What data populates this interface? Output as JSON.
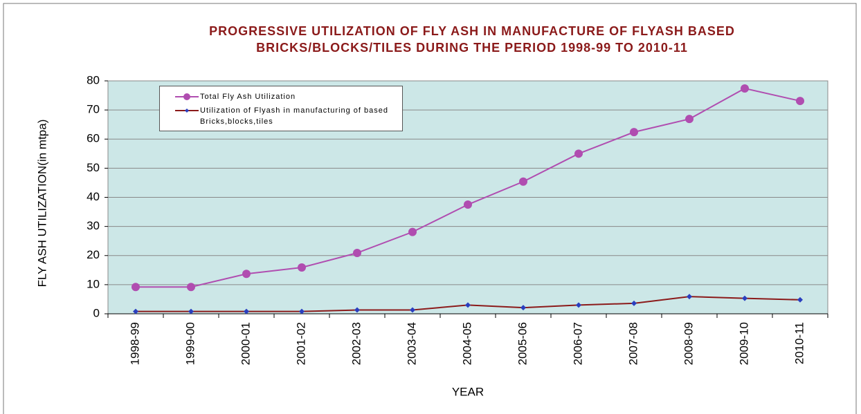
{
  "chart_data": {
    "type": "line",
    "title": [
      "PROGRESSIVE UTILIZATION OF FLY ASH IN MANUFACTURE OF FLYASH BASED",
      "BRICKS/BLOCKS/TILES DURING THE PERIOD 1998-99 TO 2010-11"
    ],
    "x_label": "YEAR",
    "y_label": "FLY ASH UTILIZATION(in mtpa)",
    "categories": [
      "1998-99",
      "1999-00",
      "2000-01",
      "2001-02",
      "2002-03",
      "2003-04",
      "2004-05",
      "2005-06",
      "2006-07",
      "2007-08",
      "2008-09",
      "2009-10",
      "2010-11"
    ],
    "series": [
      {
        "name": "Total Fly Ash Utilization",
        "color": "#b04db0",
        "marker_color": "#b04db0",
        "values": [
          9.2,
          9.2,
          13.7,
          15.9,
          20.9,
          28.1,
          37.5,
          45.4,
          55.0,
          62.4,
          66.9,
          77.4,
          73.1
        ]
      },
      {
        "name": "Utilization of Flyash in manufacturing of based Bricks,blocks,tiles",
        "color": "#8b1a1a",
        "marker_color": "#2a3fbf",
        "values": [
          0.8,
          0.8,
          0.8,
          0.8,
          1.3,
          1.3,
          3.0,
          2.1,
          3.0,
          3.6,
          5.9,
          5.3,
          4.8
        ]
      }
    ],
    "ylim": [
      0,
      80
    ],
    "yticks": [
      0,
      10,
      20,
      30,
      40,
      50,
      60,
      70,
      80
    ],
    "grid": true,
    "legend": "upper left"
  }
}
